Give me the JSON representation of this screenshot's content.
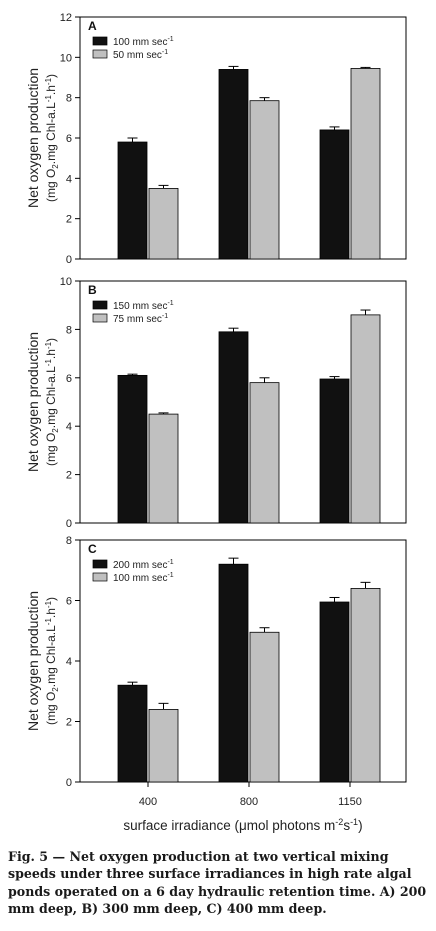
{
  "chart_data": [
    {
      "type": "bar",
      "panel_label": "A",
      "categories": [
        "400",
        "800",
        "1150"
      ],
      "series": [
        {
          "name": "100 mm sec",
          "name_sup": "-1",
          "color": "#111111",
          "values": [
            5.8,
            9.4,
            6.4
          ],
          "errors": [
            0.2,
            0.15,
            0.15
          ]
        },
        {
          "name": "50 mm sec",
          "name_sup": "-1",
          "color": "#c0c0c0",
          "values": [
            3.5,
            7.85,
            9.45
          ],
          "errors": [
            0.15,
            0.15,
            0.05
          ]
        }
      ],
      "ylim": [
        0,
        12
      ],
      "yticks": [
        "0",
        "2",
        "4",
        "6",
        "8",
        "10",
        "12"
      ],
      "ylabel": "Net oxygen production",
      "ylabel_units": "(mg O2.mg Chl-a.L-1.h-1)",
      "legend_position": "top-left"
    },
    {
      "type": "bar",
      "panel_label": "B",
      "categories": [
        "400",
        "800",
        "1150"
      ],
      "series": [
        {
          "name": "150 mm sec",
          "name_sup": "-1",
          "color": "#111111",
          "values": [
            6.1,
            7.9,
            5.95
          ],
          "errors": [
            0.05,
            0.15,
            0.1
          ]
        },
        {
          "name": "75 mm sec",
          "name_sup": "-1",
          "color": "#c0c0c0",
          "values": [
            4.5,
            5.8,
            8.6
          ],
          "errors": [
            0.05,
            0.2,
            0.2
          ]
        }
      ],
      "ylim": [
        0,
        10
      ],
      "yticks": [
        "0",
        "2",
        "4",
        "6",
        "8",
        "10"
      ],
      "ylabel": "Net oxygen production",
      "ylabel_units": "(mg O2.mg Chl-a.L-1.h-1)",
      "legend_position": "top-left"
    },
    {
      "type": "bar",
      "panel_label": "C",
      "categories": [
        "400",
        "800",
        "1150"
      ],
      "series": [
        {
          "name": "200 mm sec",
          "name_sup": "-1",
          "color": "#111111",
          "values": [
            3.2,
            7.2,
            5.95
          ],
          "errors": [
            0.1,
            0.2,
            0.15
          ]
        },
        {
          "name": "100 mm sec",
          "name_sup": "-1",
          "color": "#c0c0c0",
          "values": [
            2.4,
            4.95,
            6.4
          ],
          "errors": [
            0.2,
            0.15,
            0.2
          ]
        }
      ],
      "ylim": [
        0,
        8
      ],
      "yticks": [
        "0",
        "2",
        "4",
        "6",
        "8"
      ],
      "ylabel": "Net oxygen production",
      "ylabel_units": "(mg O2.mg Chl-a.L-1.h-1)",
      "legend_position": "top-left"
    }
  ],
  "xaxis": {
    "xlabel_prefix": "surface irradiance (",
    "xlabel_mu": "μ",
    "xlabel_unit": "mol photons m",
    "xlabel_sup1": "-2",
    "xlabel_mid": "s",
    "xlabel_sup2": "-1",
    "xlabel_suffix": ")"
  },
  "caption": {
    "lead": "Fig. 5",
    "dash": " — ",
    "text": "Net oxygen production at two vertical mixing speeds under three surface irradiances in high rate algal ponds operated on a 6 day hydraulic retention time. A) 200 mm deep, B) 300 mm deep, C) 400 mm deep."
  }
}
